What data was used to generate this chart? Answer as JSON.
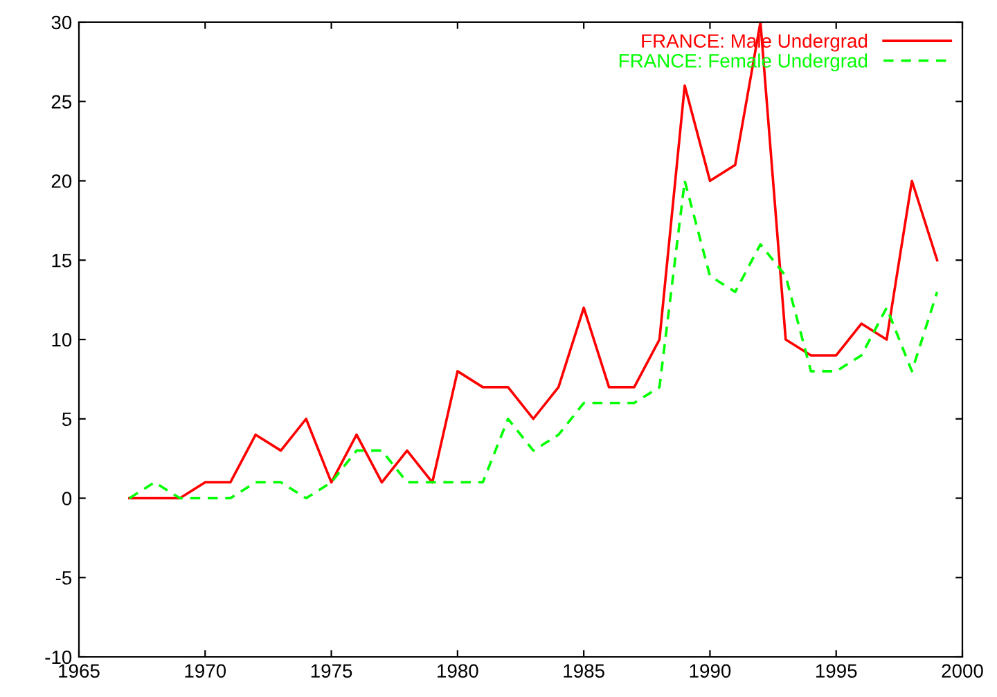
{
  "chart_data": {
    "type": "line",
    "x": [
      1967,
      1968,
      1969,
      1970,
      1971,
      1972,
      1973,
      1974,
      1975,
      1976,
      1977,
      1978,
      1979,
      1980,
      1981,
      1982,
      1983,
      1984,
      1985,
      1986,
      1987,
      1988,
      1989,
      1990,
      1991,
      1992,
      1993,
      1994,
      1995,
      1996,
      1997,
      1998,
      1999
    ],
    "series": [
      {
        "name": "FRANCE: Male Undergrad",
        "color": "#ff0000",
        "line_style": "solid",
        "values": [
          0,
          0,
          0,
          1,
          1,
          4,
          3,
          5,
          1,
          4,
          1,
          3,
          1,
          8,
          7,
          7,
          5,
          7,
          12,
          7,
          7,
          10,
          26,
          20,
          21,
          30,
          10,
          9,
          9,
          11,
          10,
          20,
          15
        ]
      },
      {
        "name": "FRANCE: Female Undergrad",
        "color": "#00ff00",
        "line_style": "dashed",
        "values": [
          0,
          1,
          0,
          0,
          0,
          1,
          1,
          0,
          1,
          3,
          3,
          1,
          1,
          1,
          1,
          5,
          3,
          4,
          6,
          6,
          6,
          7,
          20,
          14,
          13,
          16,
          14,
          8,
          8,
          9,
          12,
          8,
          13
        ]
      }
    ],
    "xlim": [
      1965,
      2000
    ],
    "xticks": [
      1965,
      1970,
      1975,
      1980,
      1985,
      1990,
      1995,
      2000
    ],
    "ylim": [
      -10,
      30
    ],
    "yticks": [
      -10,
      -5,
      0,
      5,
      10,
      15,
      20,
      25,
      30
    ],
    "grid": false,
    "legend": "top right",
    "marker": "none"
  }
}
